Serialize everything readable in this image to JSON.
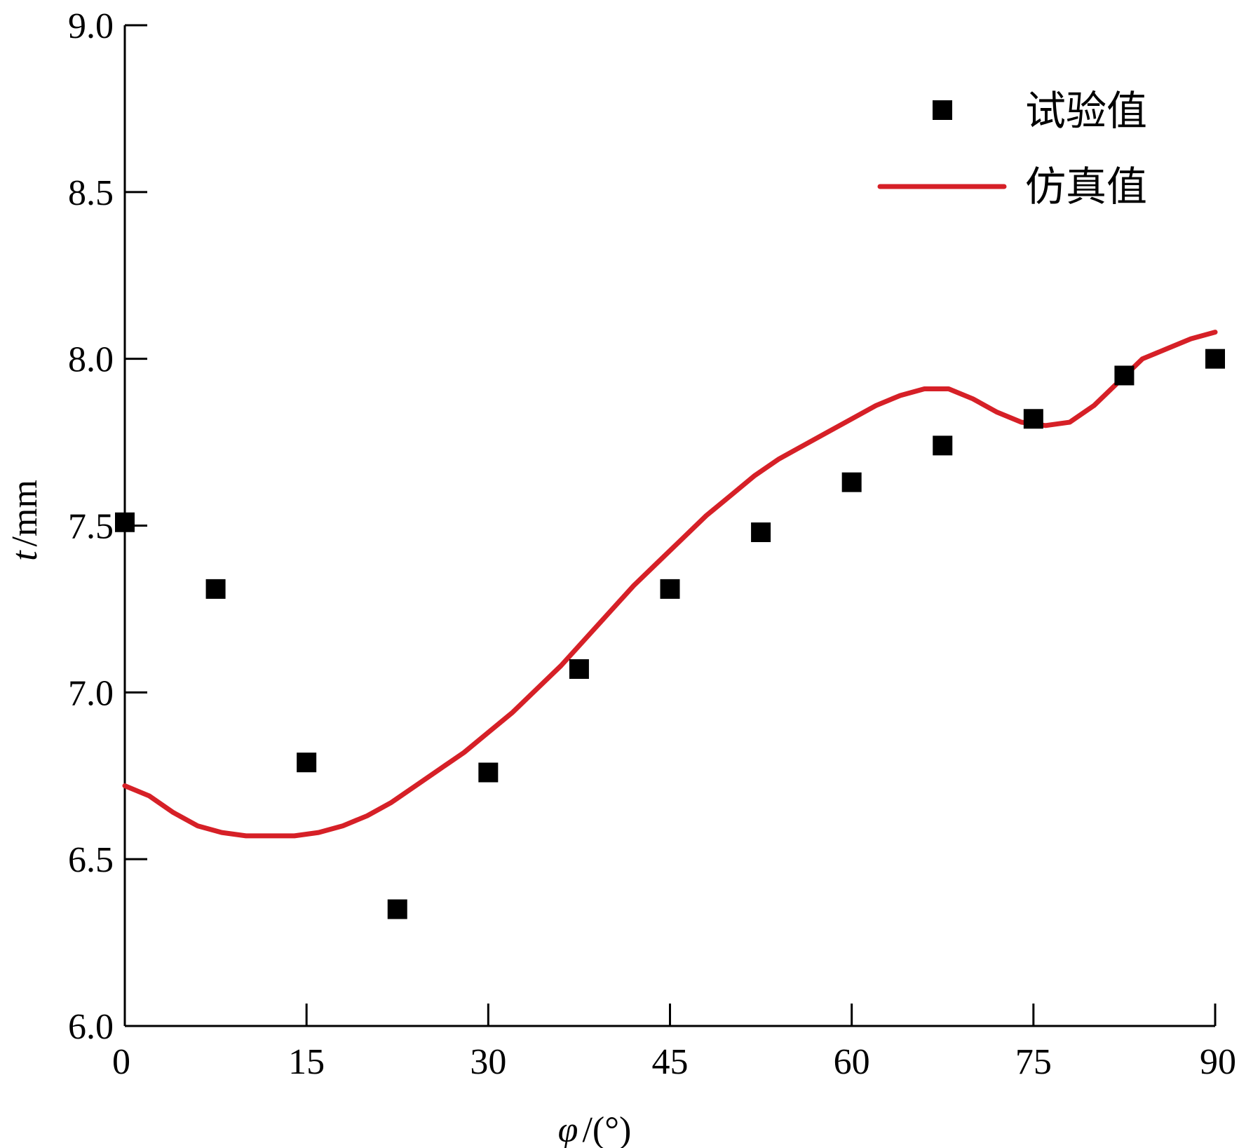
{
  "chart_data": {
    "type": "scatter+line",
    "xlabel": {
      "symbol": "φ",
      "unit": "/(°)"
    },
    "ylabel": {
      "symbol": "t",
      "unit": "/mm"
    },
    "xlim": [
      0,
      90
    ],
    "ylim": [
      6.0,
      9.0
    ],
    "xticks": [
      0,
      15,
      30,
      45,
      60,
      75,
      90
    ],
    "xtick_labels": [
      "0",
      "15",
      "30",
      "45",
      "60",
      "75",
      "90"
    ],
    "yticks": [
      6.0,
      6.5,
      7.0,
      7.5,
      8.0,
      8.5,
      9.0
    ],
    "ytick_labels": [
      "6.0",
      "6.5",
      "7.0",
      "7.5",
      "8.0",
      "8.5",
      "9.0"
    ],
    "grid": false,
    "legend": {
      "position": "top-right"
    },
    "colors": {
      "experimental": "#000000",
      "simulation": "#d62027"
    },
    "series": [
      {
        "name": "试验值",
        "kind": "scatter",
        "marker": "square",
        "x": [
          0,
          7.5,
          15,
          22.5,
          30,
          37.5,
          45,
          52.5,
          60,
          67.5,
          75,
          82.5,
          90
        ],
        "y": [
          7.51,
          7.31,
          6.79,
          6.35,
          6.76,
          7.07,
          7.31,
          7.48,
          7.63,
          7.74,
          7.82,
          7.95,
          8.0
        ]
      },
      {
        "name": "仿真值",
        "kind": "line",
        "x": [
          0,
          2,
          4,
          6,
          8,
          10,
          12,
          14,
          16,
          18,
          20,
          22,
          24,
          26,
          28,
          30,
          32,
          34,
          36,
          38,
          40,
          42,
          44,
          46,
          48,
          50,
          52,
          54,
          56,
          58,
          60,
          62,
          64,
          66,
          68,
          70,
          72,
          74,
          76,
          78,
          80,
          82,
          84,
          86,
          88,
          90
        ],
        "y": [
          6.72,
          6.69,
          6.64,
          6.6,
          6.58,
          6.57,
          6.57,
          6.57,
          6.58,
          6.6,
          6.63,
          6.67,
          6.72,
          6.77,
          6.82,
          6.88,
          6.94,
          7.01,
          7.08,
          7.16,
          7.24,
          7.32,
          7.39,
          7.46,
          7.53,
          7.59,
          7.65,
          7.7,
          7.74,
          7.78,
          7.82,
          7.86,
          7.89,
          7.91,
          7.91,
          7.88,
          7.84,
          7.81,
          7.8,
          7.81,
          7.86,
          7.93,
          8.0,
          8.03,
          8.06,
          8.08
        ]
      }
    ]
  }
}
